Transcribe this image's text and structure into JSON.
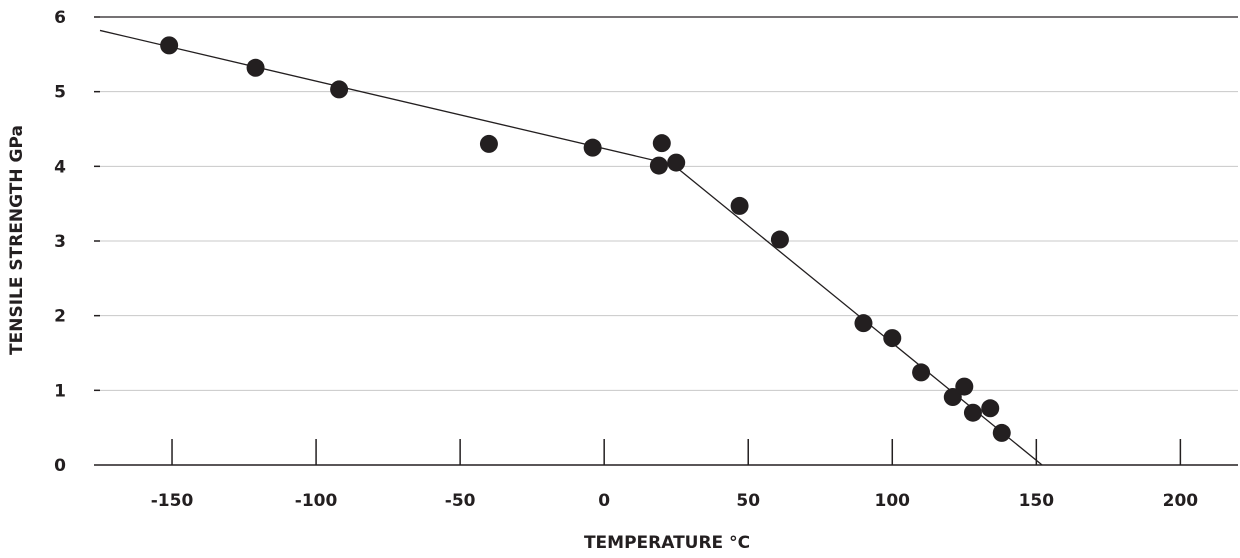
{
  "chart_data": {
    "type": "scatter",
    "xlabel": "TEMPERATURE °C",
    "ylabel": "TENSILE STRENGTH GPa",
    "xlim": [
      -175,
      220
    ],
    "ylim": [
      0,
      6
    ],
    "x_ticks": [
      -150,
      -100,
      -50,
      0,
      50,
      100,
      150,
      200
    ],
    "y_ticks": [
      0,
      1,
      2,
      3,
      4,
      5,
      6
    ],
    "grid": "horizontal",
    "colors": {
      "points": "#231f20",
      "line": "#231f20",
      "grid": "#c8c8c8"
    },
    "points": [
      {
        "x": -151,
        "y": 5.62
      },
      {
        "x": -121,
        "y": 5.32
      },
      {
        "x": -92,
        "y": 5.03
      },
      {
        "x": -40,
        "y": 4.3
      },
      {
        "x": -4,
        "y": 4.25
      },
      {
        "x": 20,
        "y": 4.31
      },
      {
        "x": 19,
        "y": 4.01
      },
      {
        "x": 25,
        "y": 4.05
      },
      {
        "x": 47,
        "y": 3.47
      },
      {
        "x": 61,
        "y": 3.02
      },
      {
        "x": 90,
        "y": 1.9
      },
      {
        "x": 100,
        "y": 1.7
      },
      {
        "x": 110,
        "y": 1.24
      },
      {
        "x": 121,
        "y": 0.91
      },
      {
        "x": 125,
        "y": 1.05
      },
      {
        "x": 128,
        "y": 0.7
      },
      {
        "x": 134,
        "y": 0.76
      },
      {
        "x": 138,
        "y": 0.43
      }
    ],
    "trend_line": [
      {
        "x": -175,
        "y": 5.82
      },
      {
        "x": 24,
        "y": 4.02
      },
      {
        "x": 152,
        "y": 0.0
      }
    ]
  }
}
